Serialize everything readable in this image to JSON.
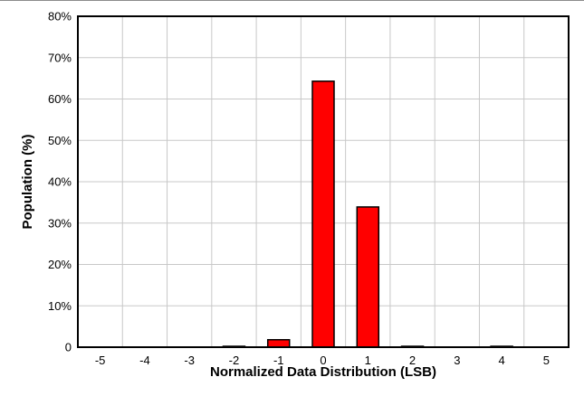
{
  "chart_data": {
    "type": "bar",
    "title": "",
    "xlabel": "Normalized Data Distribution (LSB)",
    "ylabel": "Population (%)",
    "categories": [
      "-5",
      "-4",
      "-3",
      "-2",
      "-1",
      "0",
      "1",
      "2",
      "3",
      "4",
      "5"
    ],
    "values": [
      0,
      0,
      0,
      0.05,
      1.8,
      64.3,
      33.9,
      0.05,
      0,
      0.05,
      0
    ],
    "ylim": [
      0,
      80
    ],
    "yticks": [
      0,
      10,
      20,
      30,
      40,
      50,
      60,
      70,
      80
    ],
    "ytick_labels": [
      "0",
      "10%",
      "20%",
      "30%",
      "40%",
      "50%",
      "60%",
      "70%",
      "80%"
    ],
    "grid": true,
    "legend": "none",
    "bar_color": "#ff0000",
    "bar_edge_color": "#000000",
    "grid_color": "#c8c8c8"
  }
}
